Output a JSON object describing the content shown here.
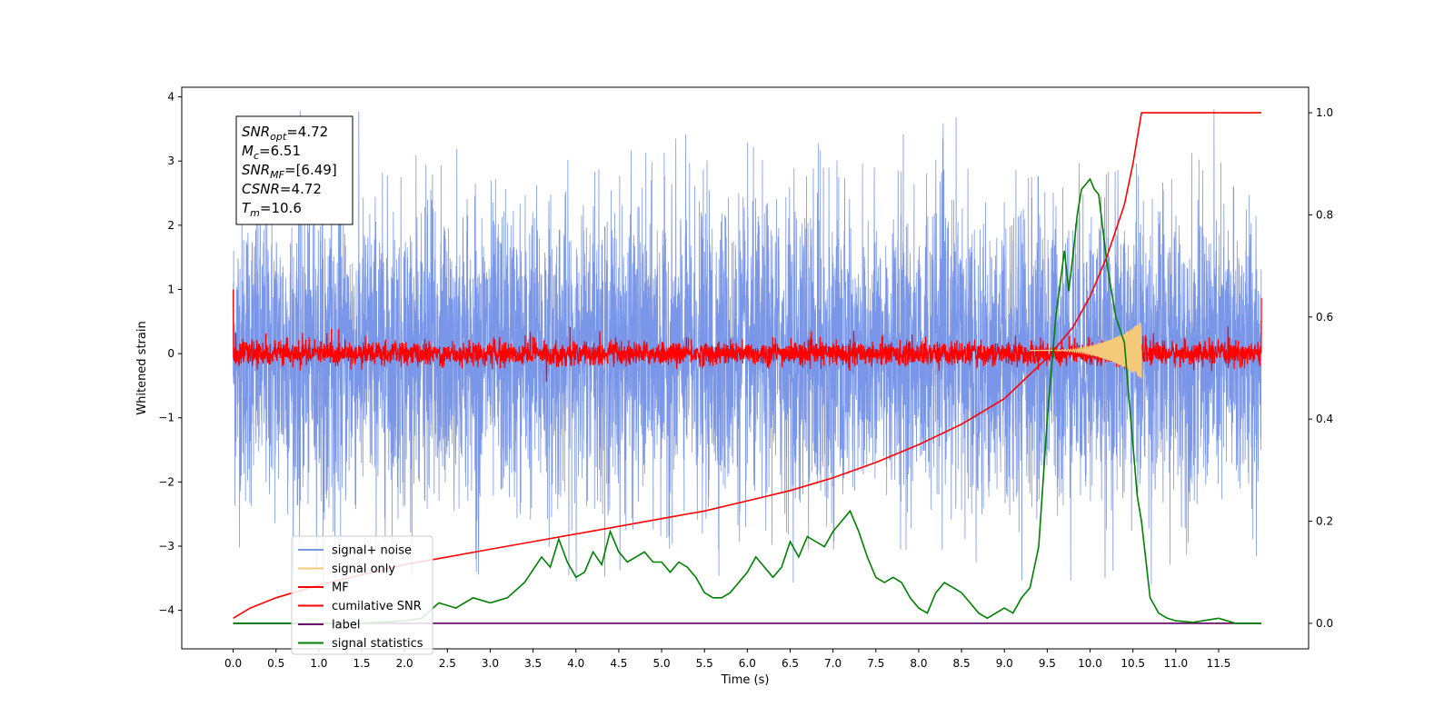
{
  "chart_data": {
    "type": "line",
    "xlabel": "Time (s)",
    "ylabel": "Whitened strain",
    "xlim": [
      -0.6,
      12.55
    ],
    "ylim": [
      -4.6,
      4.15
    ],
    "y2lim": [
      -0.05,
      1.05
    ],
    "xticks": [
      "0.0",
      "0.5",
      "1.0",
      "1.5",
      "2.0",
      "2.5",
      "3.0",
      "3.5",
      "4.0",
      "4.5",
      "5.0",
      "5.5",
      "6.0",
      "6.5",
      "7.0",
      "7.5",
      "8.0",
      "8.5",
      "9.0",
      "9.5",
      "10.0",
      "10.5",
      "11.0",
      "11.5"
    ],
    "yticks": [
      "4",
      "3",
      "2",
      "1",
      "0",
      "−1",
      "−2",
      "−3",
      "−4"
    ],
    "y2ticks": [
      "1.0",
      "0.8",
      "0.6",
      "0.4",
      "0.2",
      "0.0"
    ],
    "grid": false,
    "legend_position": "lower-left",
    "annotation": {
      "lines": [
        {
          "main": "SNR",
          "sub": "opt",
          "rest": "=4.72"
        },
        {
          "main": "M",
          "sub": "c",
          "rest": "=6.51"
        },
        {
          "main": "SNR",
          "sub": "MF",
          "rest": "=[6.49]"
        },
        {
          "main": "CSNR",
          "sub": "",
          "rest": "=4.72"
        },
        {
          "main": "T",
          "sub": "m",
          "rest": "=10.6"
        }
      ]
    },
    "series": [
      {
        "name": "signal+ noise",
        "color": "#7a96e8",
        "axis": "left",
        "t_range": [
          0.0,
          12.0
        ],
        "amplitude_range": [
          -3.6,
          3.8
        ]
      },
      {
        "name": "signal only",
        "color": "#f5c97a",
        "axis": "left",
        "t_range": [
          9.3,
          10.6
        ],
        "amplitude_range": [
          -0.55,
          0.55
        ]
      },
      {
        "name": "MF",
        "color": "#ff0000",
        "axis": "left",
        "t_range": [
          0.0,
          12.0
        ],
        "amplitude_range": [
          -0.2,
          0.55
        ]
      },
      {
        "name": "cumilative SNR",
        "color": "#ff0000",
        "axis": "right",
        "x": [
          0.0,
          0.2,
          0.5,
          1.0,
          1.5,
          2.0,
          2.5,
          3.0,
          3.5,
          4.0,
          4.5,
          5.0,
          5.5,
          6.0,
          6.5,
          7.0,
          7.5,
          8.0,
          8.5,
          9.0,
          9.5,
          9.8,
          10.0,
          10.2,
          10.4,
          10.5,
          10.6,
          11.0,
          11.5,
          12.0
        ],
        "values": [
          0.01,
          0.03,
          0.05,
          0.075,
          0.095,
          0.115,
          0.13,
          0.145,
          0.16,
          0.175,
          0.19,
          0.205,
          0.22,
          0.24,
          0.26,
          0.285,
          0.315,
          0.35,
          0.39,
          0.44,
          0.52,
          0.58,
          0.64,
          0.72,
          0.82,
          0.9,
          1.0,
          1.0,
          1.0,
          1.0
        ]
      },
      {
        "name": "label",
        "color": "#6a0f6e",
        "axis": "right",
        "x": [
          0.0,
          12.0
        ],
        "values": [
          0.0,
          0.0
        ]
      },
      {
        "name": "signal statistics",
        "color": "#008000",
        "axis": "right",
        "x": [
          0.0,
          0.5,
          1.0,
          1.5,
          2.0,
          2.2,
          2.4,
          2.6,
          2.8,
          3.0,
          3.2,
          3.4,
          3.6,
          3.7,
          3.8,
          3.9,
          4.0,
          4.1,
          4.2,
          4.3,
          4.4,
          4.5,
          4.6,
          4.7,
          4.8,
          4.9,
          5.0,
          5.1,
          5.2,
          5.3,
          5.4,
          5.5,
          5.6,
          5.7,
          5.8,
          5.9,
          6.0,
          6.1,
          6.2,
          6.3,
          6.4,
          6.5,
          6.6,
          6.7,
          6.8,
          6.9,
          7.0,
          7.1,
          7.2,
          7.3,
          7.4,
          7.5,
          7.6,
          7.7,
          7.8,
          7.9,
          8.0,
          8.1,
          8.2,
          8.3,
          8.4,
          8.5,
          8.6,
          8.7,
          8.8,
          8.9,
          9.0,
          9.1,
          9.2,
          9.3,
          9.4,
          9.5,
          9.6,
          9.7,
          9.75,
          9.8,
          9.85,
          9.9,
          10.0,
          10.05,
          10.1,
          10.2,
          10.3,
          10.4,
          10.5,
          10.55,
          10.6,
          10.7,
          10.8,
          10.9,
          11.0,
          11.2,
          11.5,
          11.7,
          12.0
        ],
        "values": [
          0.0,
          0.0,
          0.0,
          0.0,
          0.005,
          0.01,
          0.04,
          0.03,
          0.05,
          0.04,
          0.05,
          0.08,
          0.13,
          0.11,
          0.165,
          0.12,
          0.09,
          0.1,
          0.14,
          0.115,
          0.18,
          0.14,
          0.12,
          0.13,
          0.14,
          0.12,
          0.12,
          0.1,
          0.12,
          0.11,
          0.09,
          0.06,
          0.05,
          0.05,
          0.06,
          0.08,
          0.1,
          0.13,
          0.11,
          0.09,
          0.11,
          0.16,
          0.13,
          0.17,
          0.16,
          0.15,
          0.18,
          0.2,
          0.22,
          0.18,
          0.13,
          0.09,
          0.08,
          0.09,
          0.08,
          0.05,
          0.03,
          0.02,
          0.06,
          0.08,
          0.07,
          0.06,
          0.04,
          0.02,
          0.01,
          0.02,
          0.03,
          0.02,
          0.05,
          0.07,
          0.15,
          0.4,
          0.6,
          0.73,
          0.65,
          0.72,
          0.8,
          0.85,
          0.87,
          0.85,
          0.84,
          0.7,
          0.6,
          0.55,
          0.35,
          0.25,
          0.2,
          0.05,
          0.02,
          0.01,
          0.005,
          0.002,
          0.01,
          0.0,
          0.0
        ]
      }
    ]
  }
}
